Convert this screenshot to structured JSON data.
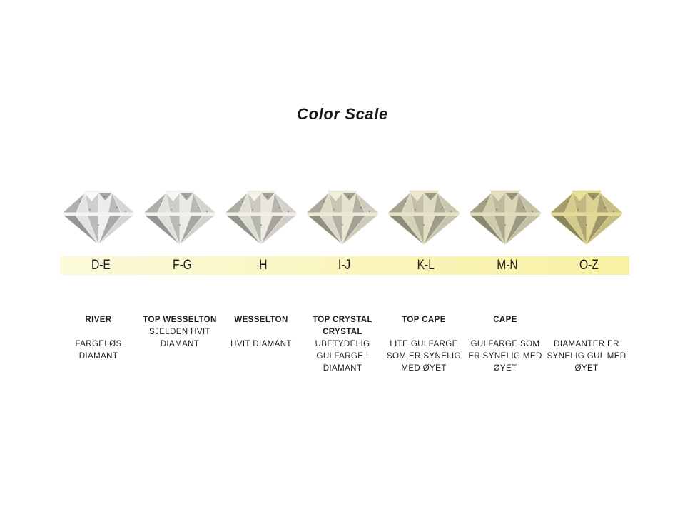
{
  "title": "Color Scale",
  "band": {
    "left_color": "#fbfada",
    "right_color": "#f8f0a2"
  },
  "columns": [
    {
      "grade": "D-E",
      "tint": "#ffffff",
      "name_lines": [
        "RIVER"
      ],
      "desc_lines": [
        "FARGELØS",
        "DIAMANT"
      ],
      "desc_start_line": 2
    },
    {
      "grade": "F-G",
      "tint": "#fdfcf7",
      "name_lines": [
        "TOP WESSELTON"
      ],
      "desc_lines": [
        "SJELDEN HVIT",
        "DIAMANT"
      ],
      "desc_start_line": 1
    },
    {
      "grade": "H",
      "tint": "#fbf9ef",
      "name_lines": [
        "WESSELTON"
      ],
      "desc_lines": [
        "HVIT DIAMANT"
      ],
      "desc_start_line": 2
    },
    {
      "grade": "I-J",
      "tint": "#f7f4e0",
      "name_lines": [
        "TOP CRYSTAL",
        "CRYSTAL"
      ],
      "desc_lines": [
        "UBETYDELIG",
        "GULFARGE I",
        "DIAMANT"
      ],
      "desc_start_line": 2
    },
    {
      "grade": "K-L",
      "tint": "#f1edd2",
      "name_lines": [
        "TOP CAPE"
      ],
      "desc_lines": [
        "LITE GULFARGE",
        "SOM ER SYNELIG",
        "MED ØYET"
      ],
      "desc_start_line": 2
    },
    {
      "grade": "M-N",
      "tint": "#eae6c4",
      "name_lines": [
        "CAPE"
      ],
      "desc_lines": [
        "GULFARGE SOM",
        "ER SYNELIG MED",
        "ØYET"
      ],
      "desc_start_line": 2
    },
    {
      "grade": "O-Z",
      "tint": "#eee49f",
      "name_lines": [],
      "desc_lines": [
        "DIAMANTER ER",
        "SYNELIG GUL MED",
        "ØYET"
      ],
      "desc_start_line": 2
    }
  ]
}
